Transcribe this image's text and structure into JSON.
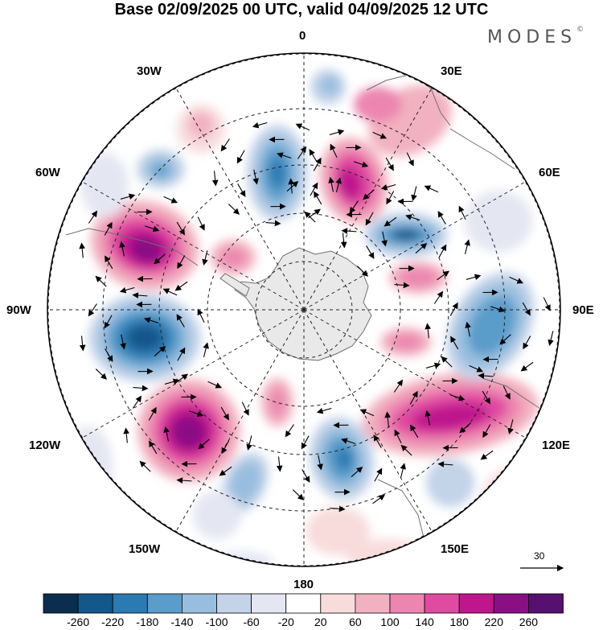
{
  "title": "Base 02/09/2025 00 UTC, valid 04/09/2025 12 UTC",
  "brand": "MODES",
  "brand_mark": "©",
  "longitude_labels": {
    "lon_0": "0",
    "lon_30e": "30E",
    "lon_60e": "60E",
    "lon_90e": "90E",
    "lon_120e": "120E",
    "lon_150e": "150E",
    "lon_180": "180",
    "lon_150w": "150W",
    "lon_120w": "120W",
    "lon_90w": "90W",
    "lon_60w": "60W",
    "lon_30w": "30W"
  },
  "reference_vector": {
    "label": "30"
  },
  "colorbar": {
    "colors": [
      "#0b2e4f",
      "#14578a",
      "#2b7ab2",
      "#5a9cca",
      "#98bedf",
      "#c3d3e8",
      "#e4e6f2",
      "#ffffff",
      "#f8dcdc",
      "#f2b1c0",
      "#ec86b0",
      "#e04aa0",
      "#c0168d",
      "#8a0f85",
      "#56106f"
    ],
    "ticks": [
      "-260",
      "-220",
      "-180",
      "-140",
      "-100",
      "-60",
      "-20",
      "20",
      "60",
      "100",
      "140",
      "180",
      "220",
      "260"
    ]
  },
  "colors": {
    "antarctica": "#e9e9e9",
    "coast": "#6f6f6f",
    "grid": "#222222"
  }
}
